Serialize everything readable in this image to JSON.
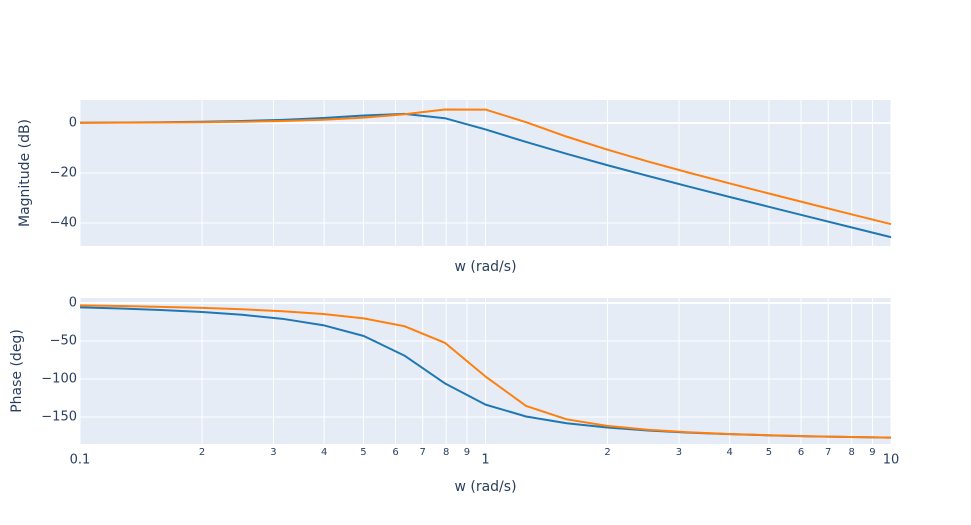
{
  "chart_data": [
    {
      "type": "line",
      "ylabel": "Magnitude (dB)",
      "xlabel": "w (rad/s)",
      "xscale": "log",
      "grid": true,
      "xlim": [
        0.1,
        10
      ],
      "ylim": [
        -49.2,
        9.2
      ],
      "yticks": [
        0,
        {
          "value": -20,
          "label": "−20"
        },
        {
          "value": -40,
          "label": "−40"
        }
      ],
      "series": [
        {
          "color": "#1f77b4",
          "x": [
            0.1,
            0.126,
            0.158,
            0.2,
            0.251,
            0.316,
            0.398,
            0.501,
            0.631,
            0.794,
            1,
            1.259,
            1.585,
            1.995,
            2.512,
            3.162,
            3.981,
            5.012,
            6.31,
            7.943,
            10
          ],
          "values": [
            0.12,
            0.2,
            0.32,
            0.51,
            0.81,
            1.27,
            2.0,
            2.98,
            3.66,
            1.92,
            -2.57,
            -7.59,
            -12.34,
            -16.85,
            -21.16,
            -25.37,
            -29.49,
            -33.57,
            -37.62,
            -41.65,
            -45.67
          ]
        },
        {
          "color": "#ff7f0e",
          "x": [
            0.1,
            0.126,
            0.158,
            0.2,
            0.251,
            0.316,
            0.398,
            0.501,
            0.631,
            0.794,
            1,
            1.259,
            1.585,
            1.995,
            2.512,
            3.162,
            3.981,
            5.012,
            6.31,
            7.943,
            10
          ],
          "values": [
            0.08,
            0.13,
            0.2,
            0.32,
            0.52,
            0.82,
            1.32,
            2.15,
            3.5,
            5.38,
            5.36,
            0.34,
            -5.45,
            -10.64,
            -15.36,
            -19.8,
            -24.07,
            -28.25,
            -32.35,
            -36.42,
            -40.46
          ]
        }
      ]
    },
    {
      "type": "line",
      "ylabel": "Phase (deg)",
      "xlabel": "w (rad/s)",
      "xscale": "log",
      "grid": true,
      "xlim": [
        0.1,
        10
      ],
      "ylim": [
        -185.5,
        6.6
      ],
      "xticks": [
        0.1,
        {
          "value": 0.2,
          "label": "2"
        },
        {
          "value": 0.3,
          "label": "3"
        },
        {
          "value": 0.4,
          "label": "4"
        },
        {
          "value": 0.5,
          "label": "5"
        },
        {
          "value": 0.6,
          "label": "6"
        },
        {
          "value": 0.7,
          "label": "7"
        },
        {
          "value": 0.8,
          "label": "8"
        },
        {
          "value": 0.9,
          "label": "9"
        },
        1,
        {
          "value": 2,
          "label": "2"
        },
        {
          "value": 3,
          "label": "3"
        },
        {
          "value": 4,
          "label": "4"
        },
        {
          "value": 5,
          "label": "5"
        },
        {
          "value": 6,
          "label": "6"
        },
        {
          "value": 7,
          "label": "7"
        },
        {
          "value": 8,
          "label": "8"
        },
        {
          "value": 9,
          "label": "9"
        },
        10
      ],
      "yticks": [
        0,
        {
          "value": -50,
          "label": "−50"
        },
        {
          "value": -100,
          "label": "−100"
        },
        {
          "value": -150,
          "label": "−150"
        }
      ],
      "series": [
        {
          "color": "#1f77b4",
          "x": [
            0.1,
            0.126,
            0.158,
            0.2,
            0.251,
            0.316,
            0.398,
            0.501,
            0.631,
            0.794,
            1,
            1.259,
            1.585,
            1.995,
            2.512,
            3.162,
            3.981,
            5.012,
            6.31,
            7.943,
            10
          ],
          "values": [
            -5.7,
            -7.2,
            -9.2,
            -11.9,
            -15.5,
            -20.8,
            -29.2,
            -43.4,
            -69.2,
            -105.7,
            -133.7,
            -149.3,
            -158.2,
            -163.8,
            -167.7,
            -170.5,
            -172.5,
            -174.1,
            -175.4,
            -176.3,
            -177.1
          ]
        },
        {
          "color": "#ff7f0e",
          "x": [
            0.1,
            0.126,
            0.158,
            0.2,
            0.251,
            0.316,
            0.398,
            0.501,
            0.631,
            0.794,
            1,
            1.259,
            1.585,
            1.995,
            2.512,
            3.162,
            3.981,
            5.012,
            6.31,
            7.943,
            10
          ],
          "values": [
            -3.1,
            -3.9,
            -5.0,
            -6.4,
            -8.2,
            -10.8,
            -14.4,
            -20.2,
            -30.5,
            -52.3,
            -96.7,
            -135.4,
            -153.0,
            -161.7,
            -166.7,
            -170.0,
            -172.3,
            -174.0,
            -175.3,
            -176.3,
            -177.1
          ]
        }
      ]
    }
  ]
}
